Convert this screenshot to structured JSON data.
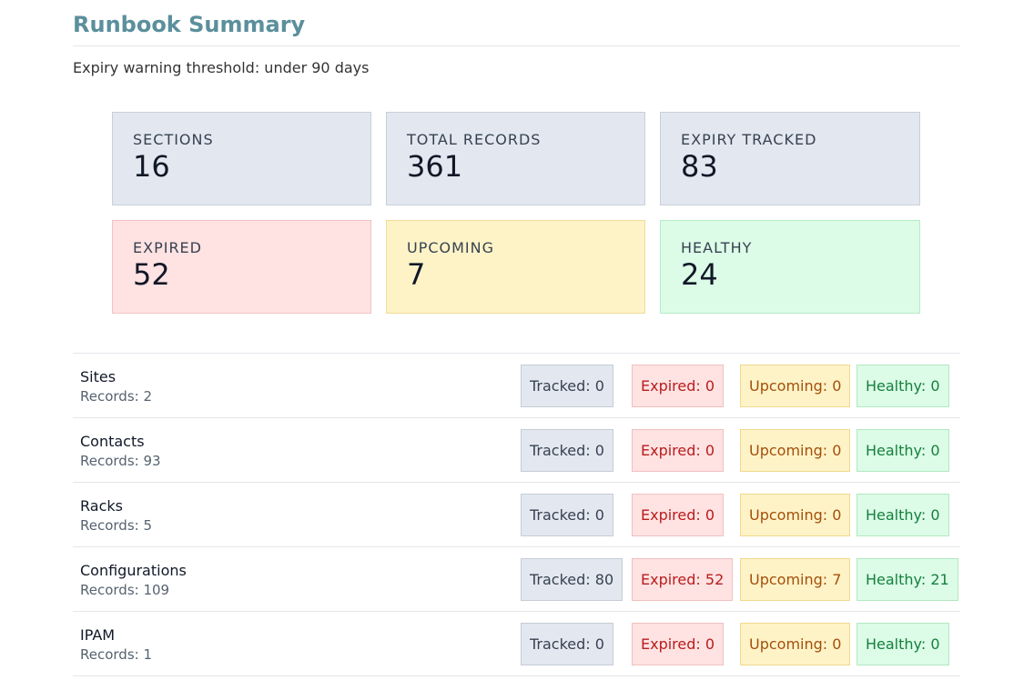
{
  "header": {
    "title": "Runbook Summary",
    "threshold": "Expiry warning threshold: under 90 days"
  },
  "cards": [
    {
      "label": "SECTIONS",
      "value": "16"
    },
    {
      "label": "TOTAL RECORDS",
      "value": "361"
    },
    {
      "label": "EXPIRY TRACKED",
      "value": "83"
    },
    {
      "label": "EXPIRED",
      "value": "52"
    },
    {
      "label": "UPCOMING",
      "value": "7"
    },
    {
      "label": "HEALTHY",
      "value": "24"
    }
  ],
  "sections": [
    {
      "name": "Sites",
      "records": "Records: 2",
      "tracked": "Tracked: 0",
      "expired": "Expired: 0",
      "upcoming": "Upcoming: 0",
      "healthy": "Healthy: 0"
    },
    {
      "name": "Contacts",
      "records": "Records: 93",
      "tracked": "Tracked: 0",
      "expired": "Expired: 0",
      "upcoming": "Upcoming: 0",
      "healthy": "Healthy: 0"
    },
    {
      "name": "Racks",
      "records": "Records: 5",
      "tracked": "Tracked: 0",
      "expired": "Expired: 0",
      "upcoming": "Upcoming: 0",
      "healthy": "Healthy: 0"
    },
    {
      "name": "Configurations",
      "records": "Records: 109",
      "tracked": "Tracked: 80",
      "expired": "Expired: 52",
      "upcoming": "Upcoming: 7",
      "healthy": "Healthy: 21"
    },
    {
      "name": "IPAM",
      "records": "Records: 1",
      "tracked": "Tracked: 0",
      "expired": "Expired: 0",
      "upcoming": "Upcoming: 0",
      "healthy": "Healthy: 0"
    }
  ],
  "colors": {
    "title": "#5b8f9c",
    "neutral_card": "#e3e8f0",
    "expired_card": "#ffe2e2",
    "upcoming_card": "#fef3c7",
    "healthy_card": "#dcfce7",
    "expired_text": "#b91c1c",
    "upcoming_text": "#a34f0b",
    "healthy_text": "#15803d"
  }
}
